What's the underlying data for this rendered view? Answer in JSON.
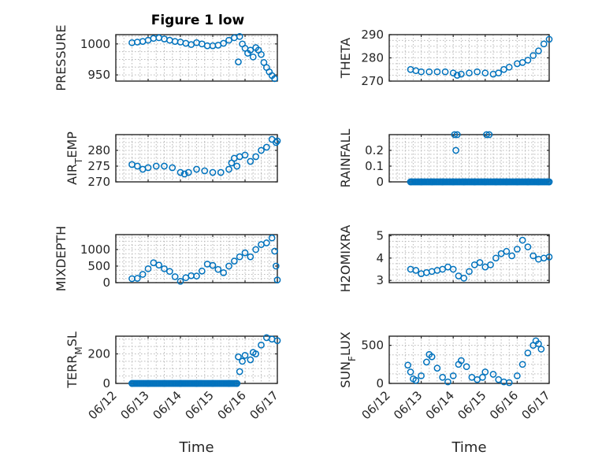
{
  "window_title": "Figure 1 low",
  "chart_data": {
    "type": "scatter",
    "title": "Figure 1 low",
    "marker": "o",
    "marker_color": "#0072bd",
    "xlabel": "Time",
    "x_tick_labels": [
      "06/12",
      "06/13",
      "06/14",
      "06/15",
      "06/16",
      "06/17"
    ],
    "x_range": [
      "06/12",
      "06/17"
    ],
    "grid": "on (major + minor)",
    "panels": [
      {
        "id": "pressure",
        "ylabel_parts": [
          {
            "t": "PRESSURE",
            "s": 0
          }
        ],
        "ylim": [
          940,
          1015
        ],
        "yticks": [
          950,
          1000
        ],
        "ytick_labels": [
          "950",
          "1000"
        ],
        "show_xticks": false,
        "points": [
          [
            "06/12 12:00",
            1002
          ],
          [
            "06/12 16:00",
            1003
          ],
          [
            "06/12 20:00",
            1004
          ],
          [
            "06/13 00:00",
            1006
          ],
          [
            "06/13 04:00",
            1009
          ],
          [
            "06/13 08:00",
            1010
          ],
          [
            "06/13 12:00",
            1008
          ],
          [
            "06/13 16:00",
            1006
          ],
          [
            "06/13 20:00",
            1004
          ],
          [
            "06/14 00:00",
            1003
          ],
          [
            "06/14 04:00",
            1001
          ],
          [
            "06/14 08:00",
            999
          ],
          [
            "06/14 12:00",
            1002
          ],
          [
            "06/14 16:00",
            1000
          ],
          [
            "06/14 20:00",
            997
          ],
          [
            "06/15 00:00",
            997
          ],
          [
            "06/15 04:00",
            998
          ],
          [
            "06/15 08:00",
            1001
          ],
          [
            "06/15 12:00",
            1006
          ],
          [
            "06/15 16:00",
            1010
          ],
          [
            "06/15 20:00",
            1012
          ],
          [
            "06/15 22:00",
            1000
          ],
          [
            "06/16 00:00",
            993
          ],
          [
            "06/16 02:00",
            985
          ],
          [
            "06/16 04:00",
            990
          ],
          [
            "06/16 06:00",
            979
          ],
          [
            "06/16 08:00",
            994
          ],
          [
            "06/16 10:00",
            990
          ],
          [
            "06/16 12:00",
            983
          ],
          [
            "06/16 14:00",
            970
          ],
          [
            "06/16 16:00",
            962
          ],
          [
            "06/16 18:00",
            955
          ],
          [
            "06/16 20:00",
            949
          ],
          [
            "06/16 22:00",
            944
          ],
          [
            "06/15 19:00",
            971
          ]
        ]
      },
      {
        "id": "theta",
        "ylabel_parts": [
          {
            "t": "THETA",
            "s": 0
          }
        ],
        "ylim": [
          270,
          290
        ],
        "yticks": [
          270,
          280,
          290
        ],
        "ytick_labels": [
          "270",
          "280",
          "290"
        ],
        "show_xticks": false,
        "points": [
          [
            "06/12 16:00",
            275
          ],
          [
            "06/12 20:00",
            274.5
          ],
          [
            "06/13 00:00",
            274
          ],
          [
            "06/13 06:00",
            274
          ],
          [
            "06/13 12:00",
            274
          ],
          [
            "06/13 18:00",
            274
          ],
          [
            "06/14 00:00",
            273.5
          ],
          [
            "06/14 03:00",
            272.5
          ],
          [
            "06/14 06:00",
            273
          ],
          [
            "06/14 12:00",
            273.5
          ],
          [
            "06/14 18:00",
            274
          ],
          [
            "06/15 00:00",
            273.5
          ],
          [
            "06/15 06:00",
            273
          ],
          [
            "06/15 10:00",
            273.5
          ],
          [
            "06/15 14:00",
            275
          ],
          [
            "06/15 18:00",
            276
          ],
          [
            "06/16 00:00",
            277.5
          ],
          [
            "06/16 04:00",
            278
          ],
          [
            "06/16 08:00",
            279
          ],
          [
            "06/16 12:00",
            281
          ],
          [
            "06/16 16:00",
            283
          ],
          [
            "06/16 20:00",
            286
          ],
          [
            "06/17 00:00",
            288
          ]
        ]
      },
      {
        "id": "air_temp",
        "ylabel_parts": [
          {
            "t": "AIR",
            "s": 0
          },
          {
            "t": "T",
            "s": -1
          },
          {
            "t": "EMP",
            "s": 0
          }
        ],
        "ylim": [
          270,
          285
        ],
        "yticks": [
          270,
          275,
          280
        ],
        "ytick_labels": [
          "270",
          "275",
          "280"
        ],
        "show_xticks": false,
        "points": [
          [
            "06/12 12:00",
            275.5
          ],
          [
            "06/12 16:00",
            275
          ],
          [
            "06/12 20:00",
            274
          ],
          [
            "06/13 00:00",
            274.5
          ],
          [
            "06/13 06:00",
            275
          ],
          [
            "06/13 12:00",
            275
          ],
          [
            "06/13 18:00",
            274.5
          ],
          [
            "06/14 00:00",
            273
          ],
          [
            "06/14 03:00",
            272.5
          ],
          [
            "06/14 06:00",
            273
          ],
          [
            "06/14 12:00",
            274
          ],
          [
            "06/14 18:00",
            273.5
          ],
          [
            "06/15 00:00",
            273
          ],
          [
            "06/15 06:00",
            273
          ],
          [
            "06/15 12:00",
            274
          ],
          [
            "06/15 14:00",
            276
          ],
          [
            "06/15 16:00",
            277.5
          ],
          [
            "06/15 18:00",
            275
          ],
          [
            "06/15 20:00",
            278
          ],
          [
            "06/16 00:00",
            278.5
          ],
          [
            "06/16 04:00",
            276.5
          ],
          [
            "06/16 08:00",
            278
          ],
          [
            "06/16 12:00",
            280
          ],
          [
            "06/16 16:00",
            281
          ],
          [
            "06/16 20:00",
            283.5
          ],
          [
            "06/17 00:00",
            283
          ],
          [
            "06/16 23:00",
            282.5
          ]
        ]
      },
      {
        "id": "rainfall",
        "ylabel_parts": [
          {
            "t": "RAINFALL",
            "s": 0
          }
        ],
        "ylim": [
          0,
          0.3
        ],
        "yticks": [
          0,
          0.1,
          0.2
        ],
        "ytick_labels": [
          "0",
          "0.1",
          "0.2"
        ],
        "show_xticks": false,
        "points": [
          [
            "06/12 16:00",
            0
          ],
          [
            "06/13 00:00",
            0
          ],
          [
            "06/13 08:00",
            0
          ],
          [
            "06/13 16:00",
            0
          ],
          [
            "06/14 00:00",
            0
          ],
          [
            "06/14 01:00",
            0.3
          ],
          [
            "06/14 02:00",
            0.2
          ],
          [
            "06/14 03:00",
            0.3
          ],
          [
            "06/14 08:00",
            0
          ],
          [
            "06/14 16:00",
            0
          ],
          [
            "06/15 00:00",
            0
          ],
          [
            "06/15 01:00",
            0.3
          ],
          [
            "06/15 03:00",
            0.3
          ],
          [
            "06/15 08:00",
            0
          ],
          [
            "06/15 16:00",
            0
          ],
          [
            "06/16 00:00",
            0
          ],
          [
            "06/16 08:00",
            0
          ],
          [
            "06/16 16:00",
            0
          ],
          [
            "06/17 00:00",
            0
          ]
        ],
        "zero_band": [
          "06/12 16:00",
          "06/17 00:00"
        ]
      },
      {
        "id": "mixdepth",
        "ylabel_parts": [
          {
            "t": "MIXDEPTH",
            "s": 0
          }
        ],
        "ylim": [
          0,
          1450
        ],
        "yticks": [
          0,
          500,
          1000
        ],
        "ytick_labels": [
          "0",
          "500",
          "1000"
        ],
        "show_xticks": false,
        "points": [
          [
            "06/12 12:00",
            120
          ],
          [
            "06/12 16:00",
            130
          ],
          [
            "06/12 20:00",
            250
          ],
          [
            "06/13 00:00",
            420
          ],
          [
            "06/13 04:00",
            600
          ],
          [
            "06/13 08:00",
            530
          ],
          [
            "06/13 12:00",
            420
          ],
          [
            "06/13 16:00",
            340
          ],
          [
            "06/13 20:00",
            180
          ],
          [
            "06/14 00:00",
            40
          ],
          [
            "06/14 04:00",
            150
          ],
          [
            "06/14 08:00",
            210
          ],
          [
            "06/14 12:00",
            200
          ],
          [
            "06/14 16:00",
            350
          ],
          [
            "06/14 20:00",
            560
          ],
          [
            "06/15 00:00",
            520
          ],
          [
            "06/15 04:00",
            400
          ],
          [
            "06/15 08:00",
            300
          ],
          [
            "06/15 12:00",
            500
          ],
          [
            "06/15 16:00",
            650
          ],
          [
            "06/15 20:00",
            780
          ],
          [
            "06/16 00:00",
            900
          ],
          [
            "06/16 04:00",
            780
          ],
          [
            "06/16 08:00",
            1000
          ],
          [
            "06/16 12:00",
            1150
          ],
          [
            "06/16 16:00",
            1200
          ],
          [
            "06/16 20:00",
            1350
          ],
          [
            "06/16 22:00",
            950
          ],
          [
            "06/16 23:00",
            500
          ],
          [
            "06/17 00:00",
            80
          ]
        ]
      },
      {
        "id": "h2omixra",
        "ylabel_parts": [
          {
            "t": "H2OMIXRA",
            "s": 0
          }
        ],
        "ylim": [
          2.9,
          5.05
        ],
        "yticks": [
          3,
          4,
          5
        ],
        "ytick_labels": [
          "3",
          "4",
          "5"
        ],
        "show_xticks": false,
        "points": [
          [
            "06/12 16:00",
            3.5
          ],
          [
            "06/12 20:00",
            3.45
          ],
          [
            "06/13 00:00",
            3.3
          ],
          [
            "06/13 04:00",
            3.35
          ],
          [
            "06/13 08:00",
            3.4
          ],
          [
            "06/13 12:00",
            3.45
          ],
          [
            "06/13 16:00",
            3.5
          ],
          [
            "06/13 20:00",
            3.6
          ],
          [
            "06/14 00:00",
            3.5
          ],
          [
            "06/14 04:00",
            3.2
          ],
          [
            "06/14 08:00",
            3.1
          ],
          [
            "06/14 12:00",
            3.4
          ],
          [
            "06/14 16:00",
            3.7
          ],
          [
            "06/14 20:00",
            3.8
          ],
          [
            "06/15 00:00",
            3.6
          ],
          [
            "06/15 04:00",
            3.7
          ],
          [
            "06/15 08:00",
            4.0
          ],
          [
            "06/15 12:00",
            4.2
          ],
          [
            "06/15 16:00",
            4.3
          ],
          [
            "06/15 20:00",
            4.1
          ],
          [
            "06/16 00:00",
            4.4
          ],
          [
            "06/16 04:00",
            4.8
          ],
          [
            "06/16 08:00",
            4.5
          ],
          [
            "06/16 12:00",
            4.1
          ],
          [
            "06/16 16:00",
            3.95
          ],
          [
            "06/16 20:00",
            4.0
          ],
          [
            "06/17 00:00",
            4.05
          ]
        ]
      },
      {
        "id": "terr_msl",
        "ylabel_parts": [
          {
            "t": "TERR",
            "s": 0
          },
          {
            "t": "M",
            "s": -1
          },
          {
            "t": "SL",
            "s": 0
          }
        ],
        "ylim": [
          0,
          320
        ],
        "yticks": [
          0,
          200
        ],
        "ytick_labels": [
          "0",
          "200"
        ],
        "show_xticks": true,
        "points": [
          [
            "06/12 12:00",
            0
          ],
          [
            "06/13 00:00",
            0
          ],
          [
            "06/13 12:00",
            0
          ],
          [
            "06/14 00:00",
            0
          ],
          [
            "06/14 12:00",
            0
          ],
          [
            "06/15 00:00",
            0
          ],
          [
            "06/15 12:00",
            0
          ],
          [
            "06/15 18:00",
            0
          ],
          [
            "06/15 19:00",
            180
          ],
          [
            "06/15 20:00",
            80
          ],
          [
            "06/15 22:00",
            150
          ],
          [
            "06/16 00:00",
            190
          ],
          [
            "06/16 04:00",
            160
          ],
          [
            "06/16 06:00",
            210
          ],
          [
            "06/16 08:00",
            200
          ],
          [
            "06/16 12:00",
            260
          ],
          [
            "06/16 16:00",
            310
          ],
          [
            "06/16 20:00",
            300
          ],
          [
            "06/17 00:00",
            290
          ]
        ],
        "zero_band": [
          "06/12 12:00",
          "06/15 18:00"
        ]
      },
      {
        "id": "sun_flux",
        "ylabel_parts": [
          {
            "t": "SUN",
            "s": 0
          },
          {
            "t": "F",
            "s": -1
          },
          {
            "t": "LUX",
            "s": 0
          }
        ],
        "ylim": [
          0,
          620
        ],
        "yticks": [
          0,
          500
        ],
        "ytick_labels": [
          "0",
          "500"
        ],
        "show_xticks": true,
        "points": [
          [
            "06/12 14:00",
            240
          ],
          [
            "06/12 16:00",
            150
          ],
          [
            "06/12 18:00",
            60
          ],
          [
            "06/12 20:00",
            40
          ],
          [
            "06/13 00:00",
            100
          ],
          [
            "06/13 04:00",
            280
          ],
          [
            "06/13 06:00",
            380
          ],
          [
            "06/13 08:00",
            350
          ],
          [
            "06/13 12:00",
            200
          ],
          [
            "06/13 16:00",
            80
          ],
          [
            "06/13 20:00",
            20
          ],
          [
            "06/14 00:00",
            100
          ],
          [
            "06/14 04:00",
            250
          ],
          [
            "06/14 06:00",
            300
          ],
          [
            "06/14 10:00",
            220
          ],
          [
            "06/14 14:00",
            80
          ],
          [
            "06/14 18:00",
            50
          ],
          [
            "06/14 22:00",
            80
          ],
          [
            "06/15 00:00",
            150
          ],
          [
            "06/15 06:00",
            120
          ],
          [
            "06/15 10:00",
            50
          ],
          [
            "06/15 14:00",
            20
          ],
          [
            "06/15 18:00",
            10
          ],
          [
            "06/16 00:00",
            100
          ],
          [
            "06/16 04:00",
            250
          ],
          [
            "06/16 08:00",
            400
          ],
          [
            "06/16 12:00",
            500
          ],
          [
            "06/16 14:00",
            560
          ],
          [
            "06/16 16:00",
            520
          ],
          [
            "06/16 18:00",
            450
          ]
        ]
      }
    ]
  }
}
